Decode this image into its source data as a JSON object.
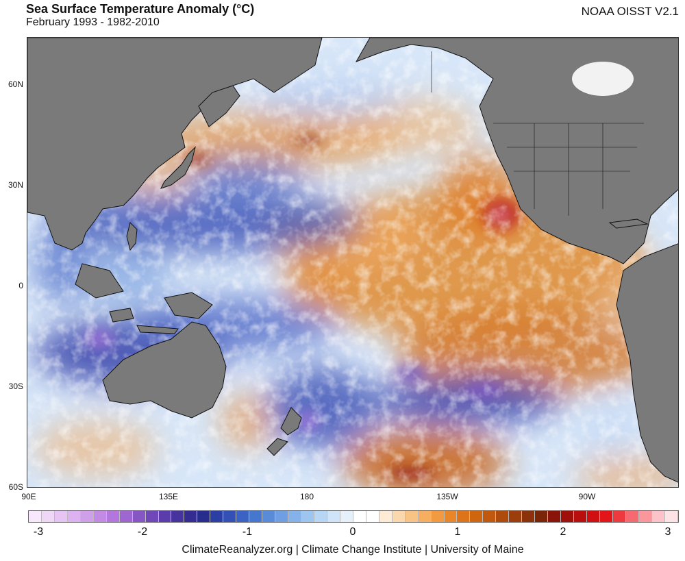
{
  "header": {
    "title": "Sea Surface Temperature Anomaly (°C)",
    "subtitle": "February 1993 - 1982-2010",
    "dataset": "NOAA OISST V2.1"
  },
  "map": {
    "lat_labels": [
      "60N",
      "30N",
      "0",
      "30S",
      "60S"
    ],
    "lon_labels": [
      "90E",
      "135E",
      "180",
      "135W",
      "90W"
    ]
  },
  "colorbar": {
    "labels": [
      "-3",
      "-2",
      "-1",
      "0",
      "1",
      "2",
      "3"
    ],
    "colors": [
      "#f7e8fb",
      "#efd7f8",
      "#e6c4f4",
      "#ddb2f0",
      "#d09fea",
      "#c28ae4",
      "#b376dc",
      "#9d66d1",
      "#8656c5",
      "#6f47b8",
      "#5a3caa",
      "#46339d",
      "#352c91",
      "#262d8c",
      "#2b3ea3",
      "#3250b5",
      "#3a63c3",
      "#4677cf",
      "#5a8bd9",
      "#6f9fe2",
      "#86b2ea",
      "#9ec4f0",
      "#b7d5f5",
      "#cfe3f9",
      "#e6f0fb",
      "#ffffff",
      "#ffffff",
      "#fdebd6",
      "#fbd7ae",
      "#f9c385",
      "#f7ae5f",
      "#f29a3f",
      "#e98628",
      "#de7419",
      "#d06510",
      "#c0580d",
      "#ae4b0c",
      "#9c3e0b",
      "#8b320a",
      "#7a2408",
      "#8a1409",
      "#a0100b",
      "#b80e0e",
      "#cf0f12",
      "#e31518",
      "#ee3a3f",
      "#f46a70",
      "#f9979d",
      "#fcc3c8",
      "#fde3e6"
    ]
  },
  "footer": {
    "credit": "ClimateReanalyzer.org | Climate Change Institute | University of Maine"
  }
}
